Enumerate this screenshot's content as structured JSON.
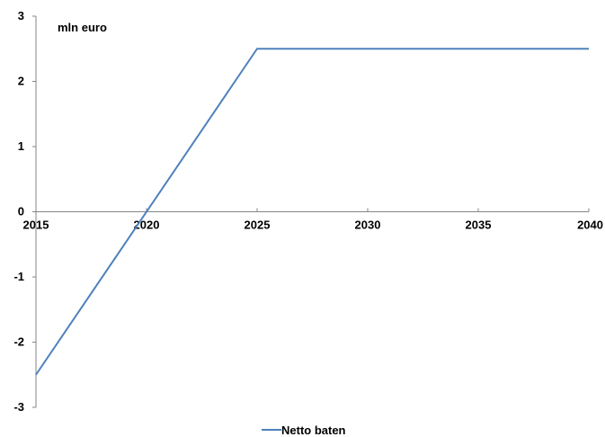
{
  "chart_data": {
    "type": "line",
    "title": "",
    "xlabel": "",
    "ylabel": "",
    "unit_label": "mln euro",
    "x_ticks": [
      "2015",
      "2020",
      "2025",
      "2030",
      "2035",
      "2040"
    ],
    "y_ticks": [
      "3",
      "2",
      "1",
      "0",
      "-1",
      "-2",
      "-3"
    ],
    "xlim": [
      2015,
      2040
    ],
    "ylim": [
      -3,
      3
    ],
    "grid": false,
    "legend_position": "bottom",
    "series": [
      {
        "name": "Netto baten",
        "color": "#4f81bd",
        "x": [
          2015,
          2025,
          2040
        ],
        "y": [
          -2.5,
          2.5,
          2.5
        ]
      }
    ]
  }
}
